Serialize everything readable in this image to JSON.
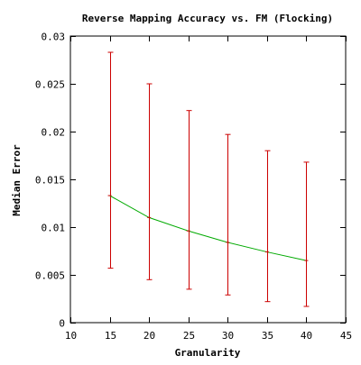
{
  "chart_data": {
    "type": "line",
    "title": "Reverse Mapping Accuracy vs. FM (Flocking)",
    "xlabel": "Granularity",
    "ylabel": "Median Error",
    "xlim": [
      10,
      45
    ],
    "ylim": [
      0,
      0.03
    ],
    "x_ticks": [
      "10",
      "15",
      "20",
      "25",
      "30",
      "35",
      "40",
      "45"
    ],
    "x_tick_values": [
      10,
      15,
      20,
      25,
      30,
      35,
      40,
      45
    ],
    "y_ticks": [
      "0",
      "0.005",
      "0.01",
      "0.015",
      "0.02",
      "0.025",
      "0.03"
    ],
    "y_tick_values": [
      0,
      0.005,
      0.01,
      0.015,
      0.02,
      0.025,
      0.03
    ],
    "grid": false,
    "legend": "none",
    "series": [
      {
        "x": [
          15,
          20,
          25,
          30,
          35,
          40
        ],
        "values": [
          0.0133,
          0.011,
          0.0096,
          0.0084,
          0.0074,
          0.0065
        ],
        "error_low": [
          0.0057,
          0.0045,
          0.0035,
          0.0029,
          0.0022,
          0.0017
        ],
        "error_high": [
          0.0283,
          0.025,
          0.0222,
          0.0197,
          0.018,
          0.0168
        ],
        "line_color": "#00aa00",
        "errorbar_color": "#cc0000"
      }
    ]
  }
}
